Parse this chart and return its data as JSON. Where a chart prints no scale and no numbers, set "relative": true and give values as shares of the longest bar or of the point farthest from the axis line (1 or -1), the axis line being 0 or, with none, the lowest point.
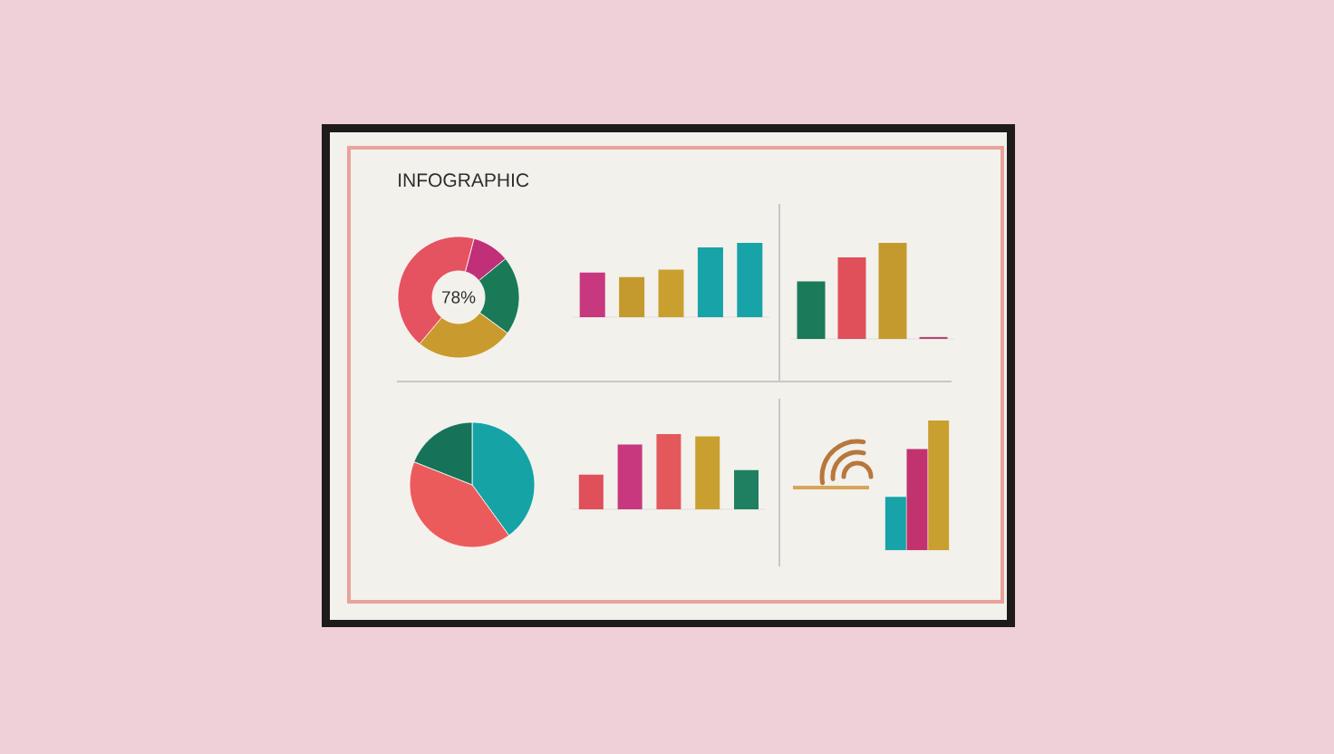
{
  "chart_data": [
    {
      "type": "donut",
      "title": "INFOGRAPHIC",
      "categories": [
        null,
        null,
        null,
        null
      ],
      "values": [
        10,
        21,
        26,
        43
      ],
      "colors": [
        "#c12f78",
        "#1a7a58",
        "#c99b2e",
        "#e4535f"
      ],
      "annotations": [
        "78%"
      ]
    },
    {
      "type": "bar",
      "relative": true,
      "categories": [
        null,
        null,
        null,
        null,
        null
      ],
      "values": [
        0.6,
        0.54,
        0.64,
        0.94,
        1
      ],
      "colors": [
        "#c8387e",
        "#c49a2e",
        "#c9a030",
        "#17a3a8",
        "#17a3a8"
      ]
    },
    {
      "type": "bar",
      "relative": true,
      "categories": [
        null,
        null,
        null,
        null
      ],
      "values": [
        0.6,
        0.85,
        1,
        0.02
      ],
      "colors": [
        "#1a7a5a",
        "#e0505a",
        "#c49a2e",
        "#b04a78"
      ]
    },
    {
      "type": "pie",
      "categories": [
        null,
        null,
        null
      ],
      "values": [
        40,
        41,
        19
      ],
      "colors": [
        "#16a3a6",
        "#ec5b5b",
        "#16735a"
      ]
    },
    {
      "type": "bar",
      "relative": true,
      "categories": [
        null,
        null,
        null,
        null,
        null
      ],
      "values": [
        0.46,
        0.86,
        1,
        0.97,
        0.52
      ],
      "colors": [
        "#e0505a",
        "#c8387e",
        "#e4585c",
        "#c9a030",
        "#1e8060"
      ]
    },
    {
      "type": "bar",
      "relative": true,
      "categories": [
        null,
        null,
        null
      ],
      "values": [
        0.41,
        0.78,
        1
      ],
      "colors": [
        "#17a3a8",
        "#c2326f",
        "#c9a030"
      ]
    }
  ]
}
